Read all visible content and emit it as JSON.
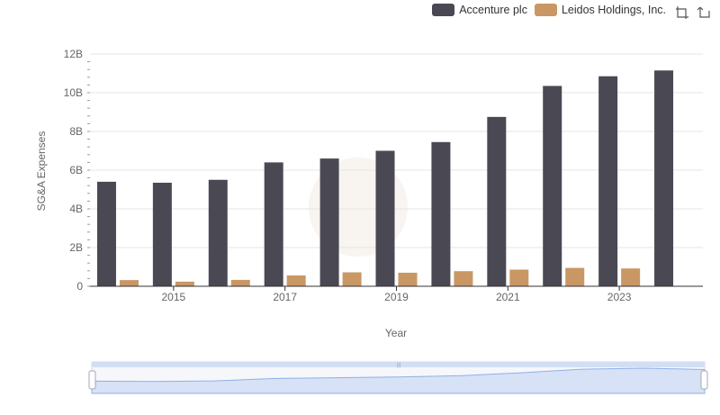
{
  "chart_data": {
    "type": "bar",
    "x": [
      2014,
      2015,
      2016,
      2017,
      2018,
      2019,
      2020,
      2021,
      2022,
      2023,
      2024
    ],
    "x_tick_labels": [
      "2015",
      "2017",
      "2019",
      "2021",
      "2023"
    ],
    "series": [
      {
        "name": "Accenture plc",
        "color": "#4a4953",
        "values": [
          5.4,
          5.35,
          5.5,
          6.4,
          6.6,
          7.0,
          7.45,
          8.75,
          10.35,
          10.85,
          11.15
        ]
      },
      {
        "name": "Leidos Holdings, Inc.",
        "color": "#c99764",
        "values": [
          0.32,
          0.24,
          0.33,
          0.56,
          0.72,
          0.7,
          0.78,
          0.86,
          0.95,
          0.92,
          null
        ]
      }
    ],
    "xlabel": "Year",
    "ylabel": "SG&A Expenses",
    "ylim": [
      0,
      12
    ],
    "y_ticks": [
      0,
      2,
      4,
      6,
      8,
      10,
      12
    ],
    "y_tick_labels": [
      "0",
      "2B",
      "4B",
      "6B",
      "8B",
      "10B",
      "12B"
    ],
    "grid": true,
    "legend_position": "top-right"
  },
  "toolbox": {
    "zoom_icon": "zoom-icon",
    "restore_icon": "restore-icon"
  },
  "data_zoom": {
    "start_percent": 0,
    "end_percent": 100
  }
}
